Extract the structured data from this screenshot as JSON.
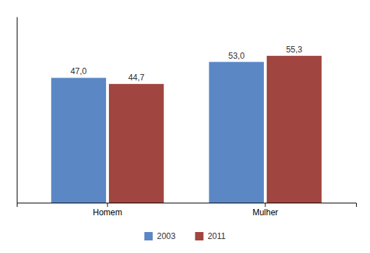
{
  "chart_data": {
    "type": "bar",
    "categories": [
      "Homem",
      "Mulher"
    ],
    "series": [
      {
        "name": "2003",
        "color": "#5B87C5",
        "values": [
          47.0,
          53.0
        ],
        "value_labels": [
          "47,0",
          "53,0"
        ]
      },
      {
        "name": "2011",
        "color": "#A0453F",
        "values": [
          44.7,
          55.3
        ],
        "value_labels": [
          "44,7",
          "55,3"
        ]
      }
    ],
    "ylim": [
      0,
      70
    ],
    "data_labels": true,
    "tick_labels": "x",
    "legend": "bottom",
    "grid": false
  }
}
